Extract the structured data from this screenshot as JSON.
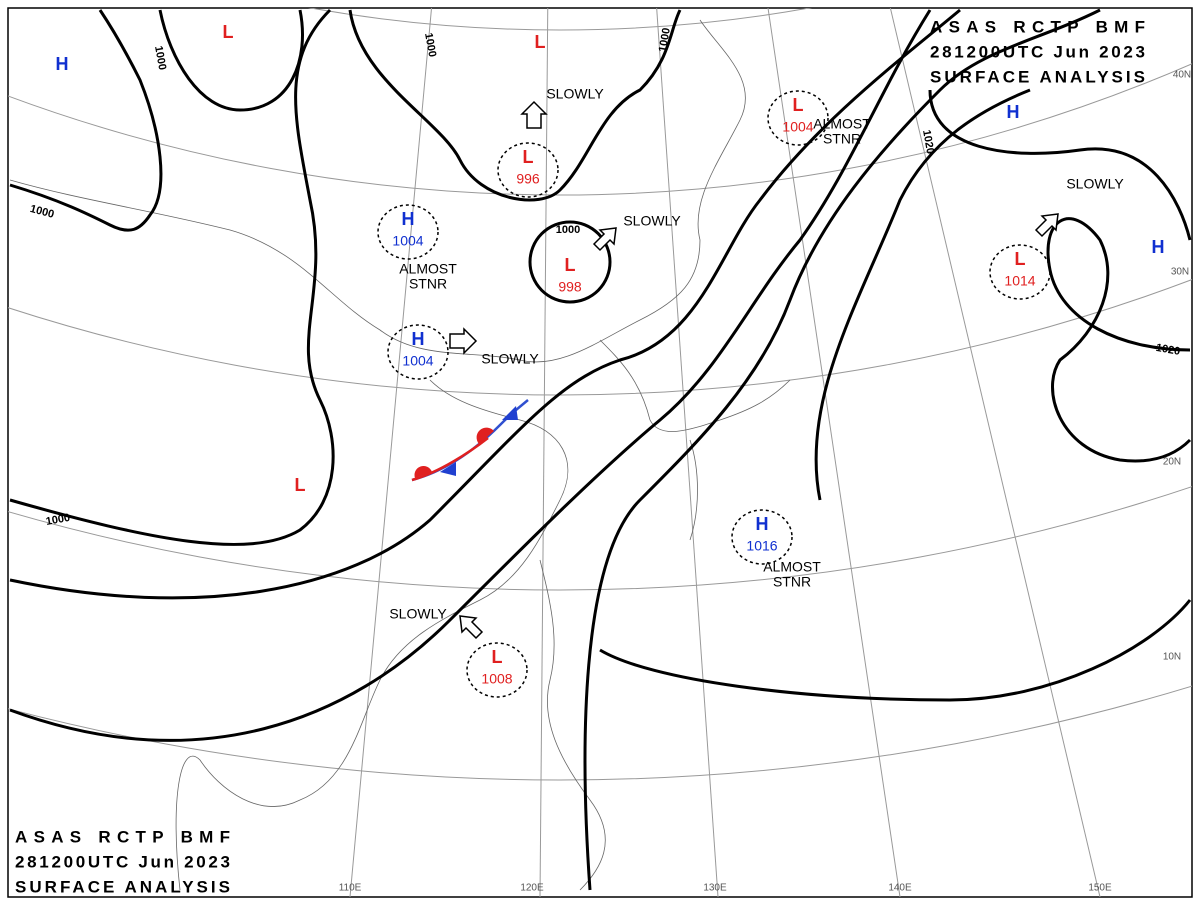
{
  "header": {
    "lines": [
      "ASAS RCTP BMF",
      "281200UTC Jun 2023",
      "SURFACE ANALYSIS"
    ]
  },
  "pressure_systems": [
    {
      "symbol": "L",
      "pressure": 996
    },
    {
      "symbol": "L",
      "pressure": 998
    },
    {
      "symbol": "L",
      "pressure": 1004
    },
    {
      "symbol": "L",
      "pressure": 1014
    },
    {
      "symbol": "L",
      "pressure": 1008
    },
    {
      "symbol": "H",
      "pressure": 1004
    },
    {
      "symbol": "H",
      "pressure": 1004
    },
    {
      "symbol": "H",
      "pressure": 1016
    },
    {
      "symbol": "L"
    },
    {
      "symbol": "L"
    },
    {
      "symbol": "L"
    },
    {
      "symbol": "H"
    },
    {
      "symbol": "H"
    },
    {
      "symbol": "H"
    }
  ],
  "movements": [
    {
      "lines": [
        "SLOWLY"
      ]
    },
    {
      "lines": [
        "SLOWLY"
      ]
    },
    {
      "lines": [
        "SLOWLY"
      ]
    },
    {
      "lines": [
        "SLOWLY"
      ]
    },
    {
      "lines": [
        "SLOWLY"
      ]
    },
    {
      "lines": [
        "ALMOST",
        "STNR"
      ]
    },
    {
      "lines": [
        "ALMOST",
        "STNR"
      ]
    },
    {
      "lines": [
        "ALMOST",
        "STNR"
      ]
    }
  ],
  "isobar_labels": [
    1000,
    1000,
    1000,
    1000,
    1000,
    1000,
    1020,
    1020
  ],
  "latitudes": [
    "40N",
    "30N",
    "20N",
    "10N"
  ],
  "longitudes": [
    "110E",
    "120E",
    "130E",
    "140E",
    "150E"
  ]
}
